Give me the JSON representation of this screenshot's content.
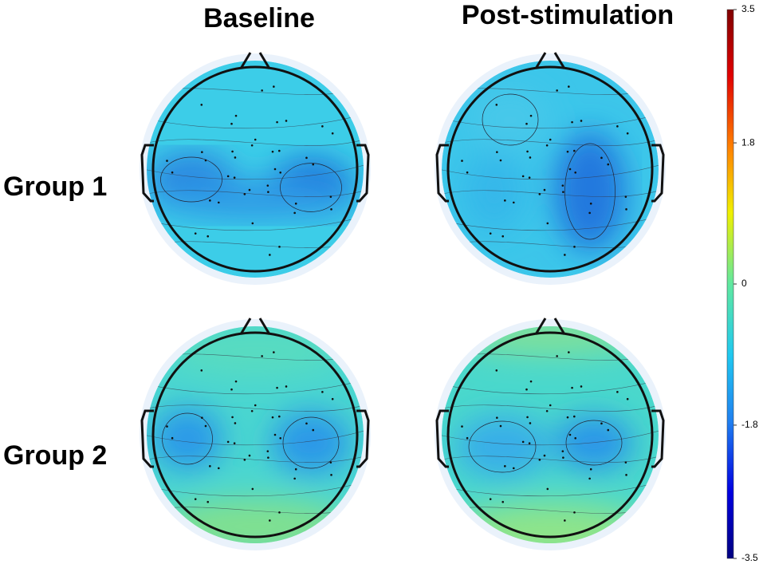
{
  "columns": [
    "Baseline",
    "Post-stimulation"
  ],
  "rows": [
    "Group 1",
    "Group 2"
  ],
  "colorbar": {
    "lim": [
      -3.5,
      3.5
    ],
    "ticks": [
      3.5,
      1.8,
      0,
      -1.8,
      -3.5
    ]
  }
}
